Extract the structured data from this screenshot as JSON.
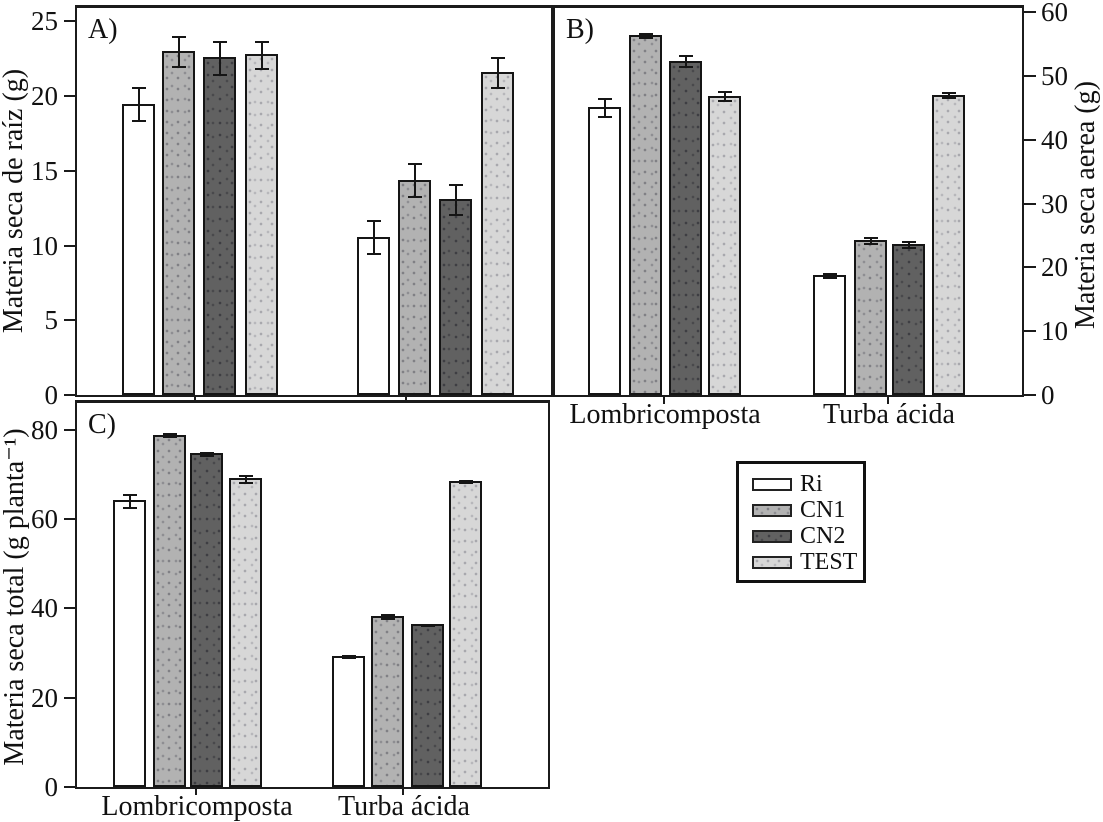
{
  "figure": {
    "background": "#ffffff",
    "line_color": "#1b1b1b",
    "categories": [
      "Lombricomposta",
      "Turba ácida"
    ]
  },
  "legend": {
    "position": "right-middle",
    "items": [
      {
        "label": "Ri",
        "color": "#ffffff"
      },
      {
        "label": "CN1",
        "color": "#b2b2b2"
      },
      {
        "label": "CN2",
        "color": "#616161"
      },
      {
        "label": "TEST",
        "color": "#d7d7d7"
      }
    ]
  },
  "chart_data": [
    {
      "type": "bar",
      "panel_label": "A)",
      "title": "",
      "xlabel": "",
      "ylabel": "Materia seca de raíz (g)",
      "axis_side": "left",
      "ylim": [
        0,
        26
      ],
      "yticks": [
        0,
        5,
        10,
        15,
        20,
        25
      ],
      "grid": false,
      "show_x_labels": false,
      "categories": [
        "Lombricomposta",
        "Turba ácida"
      ],
      "series": [
        {
          "name": "Ri",
          "color": "#ffffff",
          "values": [
            19.5,
            10.6
          ],
          "errors": [
            1.1,
            1.1
          ]
        },
        {
          "name": "CN1",
          "color": "#b2b2b2",
          "values": [
            23.0,
            14.4
          ],
          "errors": [
            1.0,
            1.1
          ]
        },
        {
          "name": "CN2",
          "color": "#616161",
          "values": [
            22.6,
            13.1
          ],
          "errors": [
            1.1,
            1.0
          ]
        },
        {
          "name": "TEST",
          "color": "#d7d7d7",
          "values": [
            22.8,
            21.6
          ],
          "errors": [
            0.9,
            1.0
          ]
        }
      ]
    },
    {
      "type": "bar",
      "panel_label": "B)",
      "title": "",
      "xlabel": "",
      "ylabel": "Materia seca aerea (g)",
      "axis_side": "right",
      "ylim": [
        0,
        60
      ],
      "yticks": [
        0,
        10,
        20,
        30,
        40,
        50,
        60
      ],
      "grid": false,
      "show_x_labels": true,
      "categories": [
        "Lombricomposta",
        "Turba ácida"
      ],
      "series": [
        {
          "name": "Ri",
          "color": "#ffffff",
          "values": [
            45.2,
            18.8
          ],
          "errors": [
            1.4,
            0.3
          ]
        },
        {
          "name": "CN1",
          "color": "#b2b2b2",
          "values": [
            56.4,
            24.3
          ],
          "errors": [
            0.3,
            0.5
          ]
        },
        {
          "name": "CN2",
          "color": "#616161",
          "values": [
            52.4,
            23.7
          ],
          "errors": [
            0.9,
            0.5
          ]
        },
        {
          "name": "TEST",
          "color": "#d7d7d7",
          "values": [
            46.9,
            47.1
          ],
          "errors": [
            0.7,
            0.4
          ]
        }
      ]
    },
    {
      "type": "bar",
      "panel_label": "C)",
      "title": "",
      "xlabel": "",
      "ylabel": "Materia seca total (g planta⁻¹)",
      "axis_side": "left",
      "ylim": [
        0,
        86
      ],
      "yticks": [
        0,
        20,
        40,
        60,
        80
      ],
      "grid": false,
      "show_x_labels": true,
      "categories": [
        "Lombricomposta",
        "Turba ácida"
      ],
      "series": [
        {
          "name": "Ri",
          "color": "#ffffff",
          "values": [
            64.2,
            29.4
          ],
          "errors": [
            1.5,
            0.2
          ]
        },
        {
          "name": "CN1",
          "color": "#b2b2b2",
          "values": [
            78.9,
            38.3
          ],
          "errors": [
            0.3,
            0.4
          ]
        },
        {
          "name": "CN2",
          "color": "#616161",
          "values": [
            74.7,
            36.4
          ],
          "errors": [
            0.3,
            0.2
          ]
        },
        {
          "name": "TEST",
          "color": "#d7d7d7",
          "values": [
            69.1,
            68.5
          ],
          "errors": [
            0.8,
            0.3
          ]
        }
      ]
    }
  ]
}
